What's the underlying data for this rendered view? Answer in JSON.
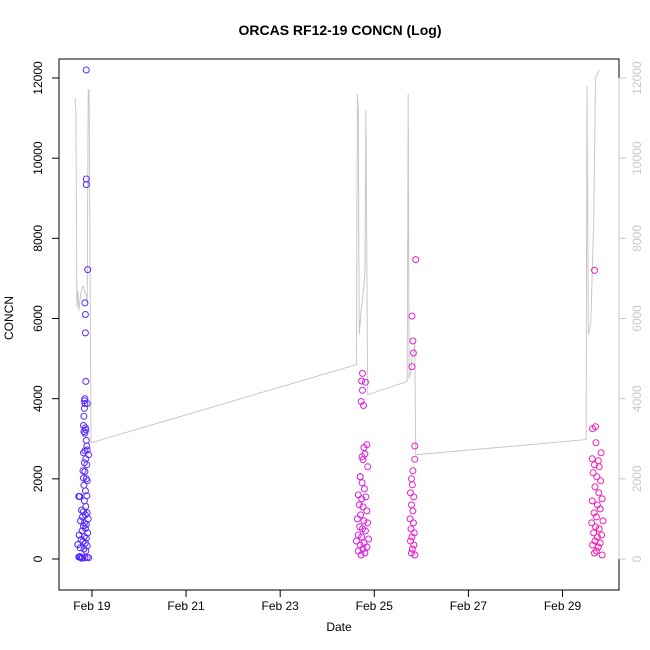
{
  "chart_data": {
    "type": "scatter",
    "title": "ORCAS RF12-19 CONCN (Log)",
    "xlabel": "Date",
    "ylabel": "CONCN",
    "x_ticks": [
      "Feb 19",
      "Feb 21",
      "Feb 23",
      "Feb 25",
      "Feb 27",
      "Feb 29"
    ],
    "x_tick_days": [
      19,
      21,
      23,
      25,
      27,
      29
    ],
    "xlim_days": [
      18.3,
      30.2
    ],
    "ylim": [
      0,
      12200
    ],
    "y_ticks": [
      0,
      2000,
      4000,
      6000,
      8000,
      10000,
      12000
    ],
    "right_axis": {
      "ylim": [
        0,
        12200
      ],
      "ticks": [
        0,
        2000,
        4000,
        6000,
        8000,
        10000,
        12000
      ],
      "color": "#c8c8c8"
    },
    "grid": false,
    "colors": {
      "flight1": "#4a23ff",
      "flight5": "#ff1aa8",
      "line": "#c8c8c8"
    },
    "flights": [
      {
        "start_day": 18.65,
        "end_day": 18.98,
        "color_start": "#3c22ff",
        "color_end": "#6a2cff",
        "points": [
          [
            18.88,
            12200
          ],
          [
            18.88,
            9480
          ],
          [
            18.88,
            9340
          ],
          [
            18.91,
            7220
          ],
          [
            18.85,
            6390
          ],
          [
            18.86,
            6100
          ],
          [
            18.86,
            5640
          ],
          [
            18.87,
            4430
          ],
          [
            18.85,
            4000
          ],
          [
            18.84,
            3950
          ],
          [
            18.85,
            3880
          ],
          [
            18.9,
            3880
          ],
          [
            18.84,
            3760
          ],
          [
            18.83,
            3560
          ],
          [
            18.82,
            3330
          ],
          [
            18.86,
            3270
          ],
          [
            18.87,
            3220
          ],
          [
            18.83,
            3180
          ],
          [
            18.85,
            3140
          ],
          [
            18.88,
            2960
          ],
          [
            18.89,
            2820
          ],
          [
            18.9,
            2720
          ],
          [
            18.85,
            2700
          ],
          [
            18.82,
            2650
          ],
          [
            18.93,
            2600
          ],
          [
            18.87,
            2500
          ],
          [
            18.84,
            2400
          ],
          [
            18.89,
            2350
          ],
          [
            18.81,
            2200
          ],
          [
            18.85,
            2180
          ],
          [
            18.82,
            2020
          ],
          [
            18.88,
            2000
          ],
          [
            18.9,
            1950
          ],
          [
            18.83,
            1840
          ],
          [
            18.86,
            1700
          ],
          [
            18.89,
            1580
          ],
          [
            18.72,
            1560
          ],
          [
            18.74,
            1560
          ],
          [
            18.84,
            1450
          ],
          [
            18.87,
            1310
          ],
          [
            18.78,
            1220
          ],
          [
            18.82,
            1180
          ],
          [
            18.9,
            1150
          ],
          [
            18.86,
            1100
          ],
          [
            18.8,
            1050
          ],
          [
            18.92,
            1000
          ],
          [
            18.76,
            950
          ],
          [
            18.84,
            900
          ],
          [
            18.88,
            860
          ],
          [
            18.82,
            820
          ],
          [
            18.86,
            760
          ],
          [
            18.79,
            700
          ],
          [
            18.91,
            650
          ],
          [
            18.73,
            600
          ],
          [
            18.84,
            560
          ],
          [
            18.88,
            520
          ],
          [
            18.77,
            480
          ],
          [
            18.81,
            440
          ],
          [
            18.86,
            400
          ],
          [
            18.7,
            360
          ],
          [
            18.9,
            330
          ],
          [
            18.75,
            280
          ],
          [
            18.83,
            250
          ],
          [
            18.87,
            200
          ],
          [
            18.74,
            60
          ],
          [
            18.76,
            40
          ],
          [
            18.8,
            30
          ],
          [
            18.85,
            30
          ],
          [
            18.9,
            40
          ],
          [
            18.93,
            30
          ],
          [
            18.72,
            50
          ],
          [
            18.78,
            20
          ]
        ]
      },
      {
        "start_day": 24.55,
        "end_day": 24.98,
        "color_start": "#d61fe8",
        "color_end": "#e21fdc",
        "points": [
          [
            24.75,
            4630
          ],
          [
            24.73,
            4440
          ],
          [
            24.81,
            4410
          ],
          [
            24.75,
            4210
          ],
          [
            24.72,
            3930
          ],
          [
            24.77,
            3830
          ],
          [
            24.7,
            2050
          ],
          [
            24.78,
            2780
          ],
          [
            24.84,
            2850
          ],
          [
            24.8,
            2620
          ],
          [
            24.74,
            2550
          ],
          [
            24.76,
            2480
          ],
          [
            24.86,
            2300
          ],
          [
            24.7,
            2050
          ],
          [
            24.74,
            1900
          ],
          [
            24.79,
            1750
          ],
          [
            24.66,
            1600
          ],
          [
            24.73,
            1500
          ],
          [
            24.82,
            1550
          ],
          [
            24.68,
            1350
          ],
          [
            24.76,
            1300
          ],
          [
            24.84,
            1200
          ],
          [
            24.71,
            1100
          ],
          [
            24.64,
            1000
          ],
          [
            24.78,
            950
          ],
          [
            24.86,
            900
          ],
          [
            24.69,
            800
          ],
          [
            24.75,
            750
          ],
          [
            24.81,
            700
          ],
          [
            24.66,
            600
          ],
          [
            24.73,
            550
          ],
          [
            24.88,
            500
          ],
          [
            24.62,
            450
          ],
          [
            24.78,
            400
          ],
          [
            24.7,
            350
          ],
          [
            24.84,
            300
          ],
          [
            24.76,
            250
          ],
          [
            24.66,
            200
          ],
          [
            24.8,
            150
          ],
          [
            24.72,
            100
          ]
        ]
      },
      {
        "start_day": 25.72,
        "end_day": 25.92,
        "color_start": "#ea1ed2",
        "color_end": "#ee1ecb",
        "points": [
          [
            25.88,
            7470
          ],
          [
            25.8,
            6060
          ],
          [
            25.82,
            5440
          ],
          [
            25.83,
            5140
          ],
          [
            25.8,
            4800
          ],
          [
            25.86,
            2820
          ],
          [
            25.86,
            2490
          ],
          [
            25.82,
            2200
          ],
          [
            25.79,
            2000
          ],
          [
            25.81,
            1850
          ],
          [
            25.77,
            1650
          ],
          [
            25.84,
            1550
          ],
          [
            25.79,
            1350
          ],
          [
            25.82,
            1200
          ],
          [
            25.76,
            1000
          ],
          [
            25.83,
            900
          ],
          [
            25.78,
            750
          ],
          [
            25.85,
            650
          ],
          [
            25.8,
            550
          ],
          [
            25.77,
            450
          ],
          [
            25.84,
            350
          ],
          [
            25.81,
            250
          ],
          [
            25.79,
            150
          ],
          [
            25.86,
            100
          ]
        ]
      },
      {
        "start_day": 29.52,
        "end_day": 29.88,
        "color_start": "#f01cc0",
        "color_end": "#ff1aa8",
        "points": [
          [
            29.68,
            7200
          ],
          [
            29.64,
            3250
          ],
          [
            29.7,
            3300
          ],
          [
            29.71,
            2900
          ],
          [
            29.82,
            2650
          ],
          [
            29.63,
            2500
          ],
          [
            29.76,
            2450
          ],
          [
            29.68,
            2350
          ],
          [
            29.78,
            2300
          ],
          [
            29.65,
            2150
          ],
          [
            29.73,
            2050
          ],
          [
            29.81,
            1950
          ],
          [
            29.69,
            1800
          ],
          [
            29.77,
            1650
          ],
          [
            29.84,
            1500
          ],
          [
            29.63,
            1450
          ],
          [
            29.74,
            1350
          ],
          [
            29.8,
            1250
          ],
          [
            29.67,
            1150
          ],
          [
            29.72,
            1050
          ],
          [
            29.86,
            950
          ],
          [
            29.62,
            900
          ],
          [
            29.7,
            800
          ],
          [
            29.78,
            750
          ],
          [
            29.66,
            650
          ],
          [
            29.83,
            600
          ],
          [
            29.74,
            550
          ],
          [
            29.69,
            450
          ],
          [
            29.8,
            400
          ],
          [
            29.64,
            350
          ],
          [
            29.76,
            300
          ],
          [
            29.72,
            200
          ],
          [
            29.68,
            150
          ],
          [
            29.84,
            100
          ]
        ]
      }
    ],
    "line_series": [
      [
        18.64,
        11500
      ],
      [
        18.66,
        11200
      ],
      [
        18.68,
        6300
      ],
      [
        18.7,
        6700
      ],
      [
        18.72,
        6200
      ],
      [
        18.74,
        6400
      ],
      [
        18.76,
        6600
      ],
      [
        18.78,
        6700
      ],
      [
        18.8,
        6800
      ],
      [
        18.82,
        6800
      ],
      [
        18.84,
        6700
      ],
      [
        18.86,
        6600
      ],
      [
        18.88,
        6600
      ],
      [
        18.9,
        6400
      ],
      [
        18.92,
        11700
      ],
      [
        18.94,
        11700
      ],
      [
        18.98,
        2900
      ],
      [
        24.62,
        4850
      ],
      [
        24.64,
        11600
      ],
      [
        24.66,
        11200
      ],
      [
        24.68,
        5600
      ],
      [
        24.7,
        5900
      ],
      [
        24.72,
        6200
      ],
      [
        24.74,
        6400
      ],
      [
        24.76,
        6600
      ],
      [
        24.78,
        6800
      ],
      [
        24.8,
        7100
      ],
      [
        24.82,
        11200
      ],
      [
        24.86,
        4100
      ],
      [
        25.7,
        4430
      ],
      [
        25.72,
        11600
      ],
      [
        25.74,
        4500
      ],
      [
        25.78,
        4700
      ],
      [
        25.8,
        5000
      ],
      [
        25.84,
        5200
      ],
      [
        25.86,
        5400
      ],
      [
        25.88,
        2600
      ],
      [
        29.5,
        2980
      ],
      [
        29.52,
        11800
      ],
      [
        29.55,
        5600
      ],
      [
        29.6,
        5900
      ],
      [
        29.66,
        8300
      ],
      [
        29.7,
        12000
      ],
      [
        29.74,
        12100
      ],
      [
        29.78,
        12200
      ]
    ]
  }
}
